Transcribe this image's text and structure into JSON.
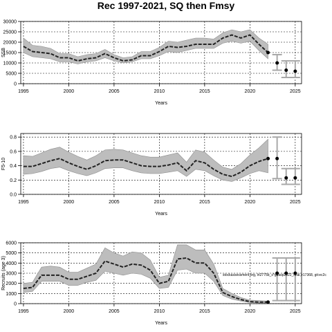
{
  "chart_data": {
    "title": "Rec 1997-2021, SQ then Fmsy",
    "panels": [
      {
        "type": "line",
        "ylabel": "SSB",
        "xlabel": "Years",
        "xlim": [
          1994.7,
          2025.7
        ],
        "ylim": [
          0,
          30000
        ],
        "xticks": [
          1995,
          2000,
          2005,
          2010,
          2015,
          2020,
          2025
        ],
        "yticks": [
          0,
          5000,
          10000,
          15000,
          20000,
          25000,
          30000
        ],
        "historical": {
          "x": [
            1995,
            1996,
            1997,
            1998,
            1999,
            2000,
            2001,
            2002,
            2003,
            2004,
            2005,
            2006,
            2007,
            2008,
            2009,
            2010,
            2011,
            2012,
            2013,
            2014,
            2015,
            2016,
            2017,
            2018,
            2019,
            2020,
            2021,
            2022
          ],
          "median": [
            18000,
            15500,
            15000,
            14500,
            12500,
            12500,
            11000,
            12000,
            12500,
            14500,
            12500,
            11000,
            11500,
            13500,
            13500,
            15500,
            18000,
            17500,
            18000,
            19000,
            19000,
            19000,
            22000,
            23500,
            22000,
            23500,
            19000,
            15000
          ],
          "lower": [
            15000,
            13000,
            12500,
            12000,
            10500,
            10500,
            9500,
            10500,
            11000,
            12500,
            11000,
            10000,
            10500,
            12000,
            12000,
            13500,
            15500,
            15000,
            16000,
            17000,
            17000,
            17000,
            19500,
            20500,
            19500,
            20500,
            16000,
            12000
          ],
          "upper": [
            22000,
            18500,
            18000,
            17000,
            14500,
            14500,
            13000,
            14000,
            14500,
            16500,
            14000,
            12500,
            13000,
            15500,
            15500,
            17500,
            20500,
            20000,
            21000,
            22000,
            22000,
            21500,
            24500,
            26000,
            25000,
            26000,
            22000,
            19000
          ]
        },
        "projection": [
          {
            "x": 2023,
            "median": 10000,
            "lower": 6500,
            "upper": 14000
          },
          {
            "x": 2024,
            "median": 6500,
            "lower": 3000,
            "upper": 11000
          },
          {
            "x": 2025,
            "median": 6000,
            "lower": 3000,
            "upper": 11000
          }
        ]
      },
      {
        "type": "line",
        "ylabel": "F5-10",
        "xlabel": "Years",
        "xlim": [
          1994.7,
          2025.7
        ],
        "ylim": [
          0,
          0.85
        ],
        "xticks": [
          1995,
          2000,
          2005,
          2010,
          2015,
          2020,
          2025
        ],
        "yticks": [
          0.0,
          0.2,
          0.4,
          0.6,
          0.8
        ],
        "historical": {
          "x": [
            1995,
            1996,
            1997,
            1998,
            1999,
            2000,
            2001,
            2002,
            2003,
            2004,
            2005,
            2006,
            2007,
            2008,
            2009,
            2010,
            2011,
            2012,
            2013,
            2014,
            2015,
            2016,
            2017,
            2018,
            2019,
            2020,
            2021,
            2022
          ],
          "median": [
            0.39,
            0.39,
            0.43,
            0.47,
            0.5,
            0.44,
            0.39,
            0.35,
            0.4,
            0.47,
            0.48,
            0.48,
            0.44,
            0.4,
            0.39,
            0.39,
            0.41,
            0.44,
            0.33,
            0.47,
            0.44,
            0.35,
            0.28,
            0.25,
            0.31,
            0.4,
            0.46,
            0.5
          ],
          "lower": [
            0.28,
            0.29,
            0.32,
            0.36,
            0.38,
            0.33,
            0.29,
            0.26,
            0.3,
            0.36,
            0.37,
            0.37,
            0.33,
            0.3,
            0.29,
            0.29,
            0.31,
            0.33,
            0.25,
            0.35,
            0.33,
            0.26,
            0.2,
            0.18,
            0.23,
            0.29,
            0.33,
            0.3
          ],
          "upper": [
            0.54,
            0.53,
            0.58,
            0.63,
            0.66,
            0.59,
            0.53,
            0.48,
            0.54,
            0.62,
            0.63,
            0.62,
            0.58,
            0.54,
            0.52,
            0.52,
            0.55,
            0.58,
            0.45,
            0.62,
            0.59,
            0.48,
            0.38,
            0.35,
            0.43,
            0.55,
            0.65,
            0.77
          ]
        },
        "projection": [
          {
            "x": 2023,
            "median": 0.5,
            "lower": 0.22,
            "upper": 0.8
          },
          {
            "x": 2024,
            "median": 0.23,
            "lower": 0.14,
            "upper": 0.36
          },
          {
            "x": 2025,
            "median": 0.23,
            "lower": 0.14,
            "upper": 0.36
          }
        ]
      },
      {
        "type": "line",
        "ylabel": "Recruits (age 3)",
        "xlabel": "Years",
        "xlim": [
          1994.7,
          2025.7
        ],
        "ylim": [
          0,
          6000
        ],
        "xticks": [
          1995,
          2000,
          2005,
          2010,
          2015,
          2020,
          2025
        ],
        "yticks": [
          0,
          1000,
          2000,
          3000,
          4000,
          5000,
          6000
        ],
        "annotation": "stockassessment.org, ln2775b_s*gdasp2022_final, r17368, git:ec2c",
        "historical": {
          "x": [
            1995,
            1996,
            1997,
            1998,
            1999,
            2000,
            2001,
            2002,
            2003,
            2004,
            2005,
            2006,
            2007,
            2008,
            2009,
            2010,
            2011,
            2012,
            2013,
            2014,
            2015,
            2016,
            2017,
            2018,
            2019,
            2020,
            2021,
            2022
          ],
          "median": [
            1500,
            1600,
            2800,
            2800,
            2800,
            2400,
            2400,
            2700,
            3000,
            4200,
            3900,
            3600,
            3900,
            3800,
            3300,
            2000,
            2200,
            4400,
            4500,
            4000,
            4000,
            3000,
            1100,
            700,
            400,
            200,
            150,
            150
          ],
          "lower": [
            1100,
            1200,
            2200,
            2200,
            2200,
            1800,
            1800,
            2100,
            2300,
            3200,
            3000,
            2800,
            3000,
            2900,
            2500,
            1500,
            1600,
            3300,
            3400,
            3000,
            3000,
            2200,
            800,
            450,
            250,
            100,
            60,
            60
          ],
          "upper": [
            2000,
            2100,
            3600,
            3700,
            3600,
            3100,
            3100,
            3500,
            3900,
            5500,
            5000,
            4700,
            5100,
            5000,
            4300,
            2600,
            2800,
            5800,
            5800,
            5300,
            5300,
            3900,
            1500,
            1000,
            600,
            350,
            300,
            250
          ]
        },
        "projection": [
          {
            "x": 2023,
            "median": 3000,
            "lower": 300,
            "upper": 4500
          },
          {
            "x": 2024,
            "median": 3000,
            "lower": 300,
            "upper": 4500
          },
          {
            "x": 2025,
            "median": 3000,
            "lower": 300,
            "upper": 4500
          }
        ]
      }
    ]
  }
}
